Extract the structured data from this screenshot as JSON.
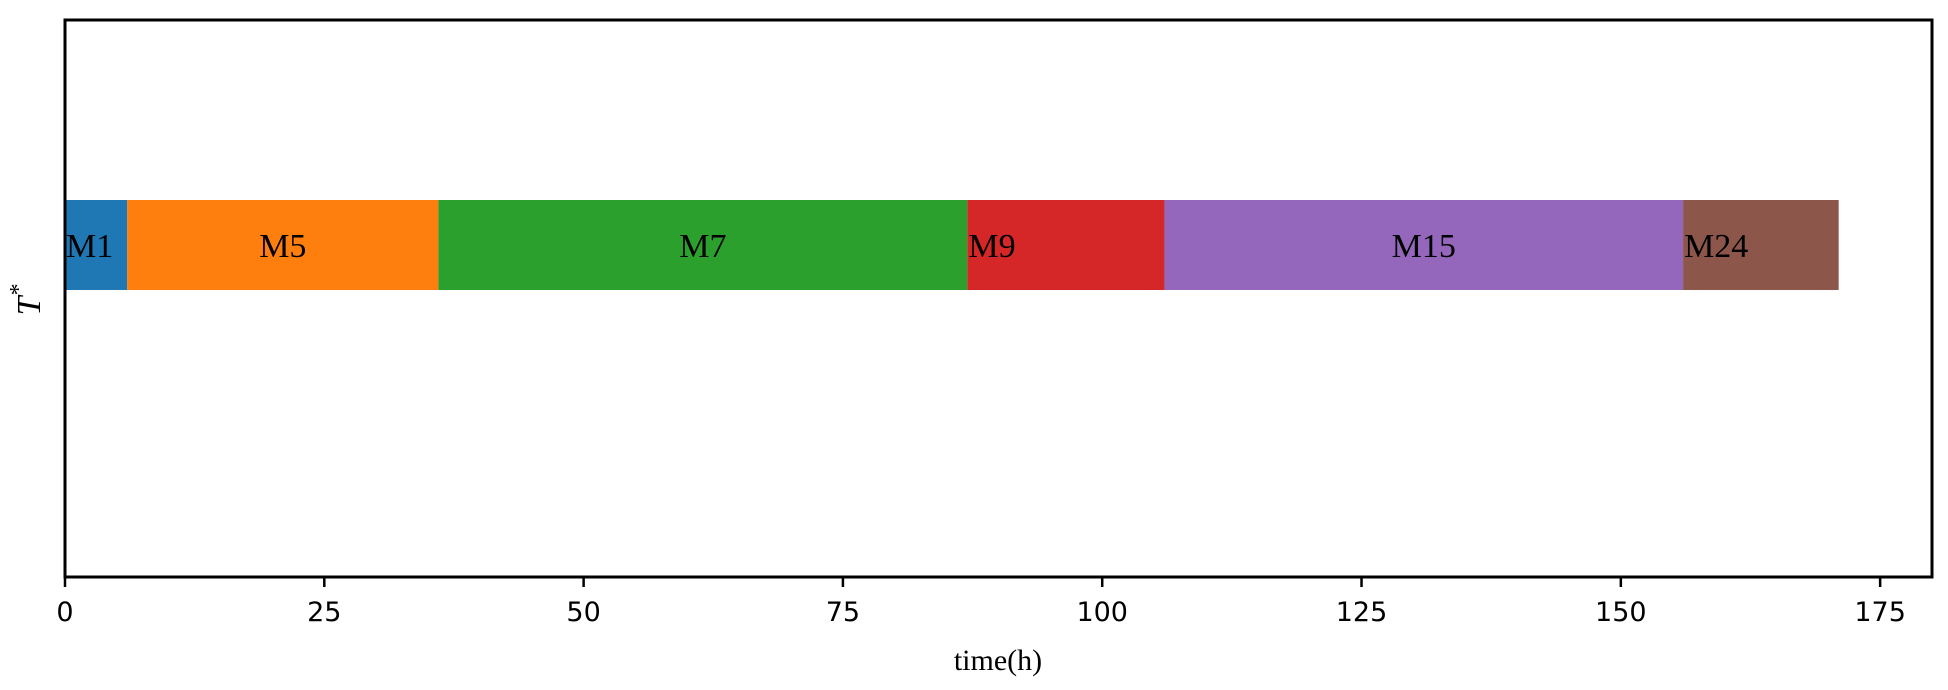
{
  "chart_data": {
    "type": "gantt-bar",
    "title": "",
    "xlabel": "time(h)",
    "ylabel": "T",
    "ylabel_superscript": "*",
    "xlim": [
      0,
      180
    ],
    "xticks": [
      0,
      25,
      50,
      75,
      100,
      125,
      150,
      175
    ],
    "grid": false,
    "segments": [
      {
        "label": "M1",
        "start": 0,
        "end": 6,
        "color": "#1f77b4",
        "label_align": "start"
      },
      {
        "label": "M5",
        "start": 6,
        "end": 36,
        "color": "#ff7f0e",
        "label_align": "middle"
      },
      {
        "label": "M7",
        "start": 36,
        "end": 87,
        "color": "#2ca02c",
        "label_align": "middle"
      },
      {
        "label": "M9",
        "start": 87,
        "end": 106,
        "color": "#d62728",
        "label_align": "start"
      },
      {
        "label": "M15",
        "start": 106,
        "end": 156,
        "color": "#9467bd",
        "label_align": "middle"
      },
      {
        "label": "M24",
        "start": 156,
        "end": 171,
        "color": "#8c564b",
        "label_align": "start"
      }
    ]
  }
}
